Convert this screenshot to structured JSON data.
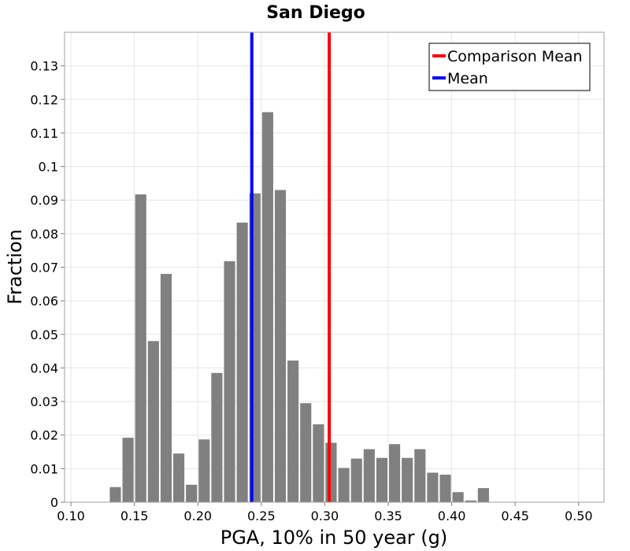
{
  "chart_data": {
    "type": "bar",
    "title": "San Diego",
    "xlabel": "PGA, 10% in 50 year (g)",
    "ylabel": "Fraction",
    "xlim": [
      0.095,
      0.52
    ],
    "ylim": [
      0,
      0.14
    ],
    "xticks": [
      0.1,
      0.15,
      0.2,
      0.25,
      0.3,
      0.35,
      0.4,
      0.45,
      0.5
    ],
    "xtick_labels": [
      "0.10",
      "0.15",
      "0.20",
      "0.25",
      "0.30",
      "0.35",
      "0.40",
      "0.45",
      "0.50"
    ],
    "yticks": [
      0,
      0.01,
      0.02,
      0.03,
      0.04,
      0.05,
      0.06,
      0.07,
      0.08,
      0.09,
      0.1,
      0.11,
      0.12,
      0.13
    ],
    "ytick_labels": [
      "0",
      "0.01",
      "0.02",
      "0.03",
      "0.04",
      "0.05",
      "0.06",
      "0.07",
      "0.08",
      "0.09",
      "0.1",
      "0.11",
      "0.12",
      "0.13"
    ],
    "grid": true,
    "bin_width": 0.01,
    "bins": [
      {
        "x": 0.135,
        "value": 0.0045
      },
      {
        "x": 0.145,
        "value": 0.0192
      },
      {
        "x": 0.155,
        "value": 0.0917
      },
      {
        "x": 0.165,
        "value": 0.048
      },
      {
        "x": 0.175,
        "value": 0.068
      },
      {
        "x": 0.185,
        "value": 0.0145
      },
      {
        "x": 0.195,
        "value": 0.0052
      },
      {
        "x": 0.205,
        "value": 0.0187
      },
      {
        "x": 0.215,
        "value": 0.0385
      },
      {
        "x": 0.225,
        "value": 0.0718
      },
      {
        "x": 0.235,
        "value": 0.0833
      },
      {
        "x": 0.245,
        "value": 0.092
      },
      {
        "x": 0.255,
        "value": 0.1162
      },
      {
        "x": 0.265,
        "value": 0.093
      },
      {
        "x": 0.275,
        "value": 0.0422
      },
      {
        "x": 0.285,
        "value": 0.0295
      },
      {
        "x": 0.295,
        "value": 0.0232
      },
      {
        "x": 0.305,
        "value": 0.0177
      },
      {
        "x": 0.315,
        "value": 0.0102
      },
      {
        "x": 0.325,
        "value": 0.013
      },
      {
        "x": 0.335,
        "value": 0.0158
      },
      {
        "x": 0.345,
        "value": 0.0132
      },
      {
        "x": 0.355,
        "value": 0.0173
      },
      {
        "x": 0.365,
        "value": 0.0132
      },
      {
        "x": 0.375,
        "value": 0.0158
      },
      {
        "x": 0.385,
        "value": 0.0088
      },
      {
        "x": 0.395,
        "value": 0.0082
      },
      {
        "x": 0.405,
        "value": 0.003
      },
      {
        "x": 0.415,
        "value": 0.0005
      },
      {
        "x": 0.425,
        "value": 0.0042
      }
    ],
    "vlines": [
      {
        "name": "Comparison Mean",
        "x": 0.3035,
        "color": "#ff0000"
      },
      {
        "name": "Mean",
        "x": 0.2425,
        "color": "#0000ff"
      }
    ],
    "legend": {
      "placement": "top-right",
      "entries": [
        {
          "label": "Comparison Mean",
          "color": "#ff0000"
        },
        {
          "label": "Mean",
          "color": "#0000ff"
        }
      ]
    },
    "bar_color": "#808080"
  }
}
